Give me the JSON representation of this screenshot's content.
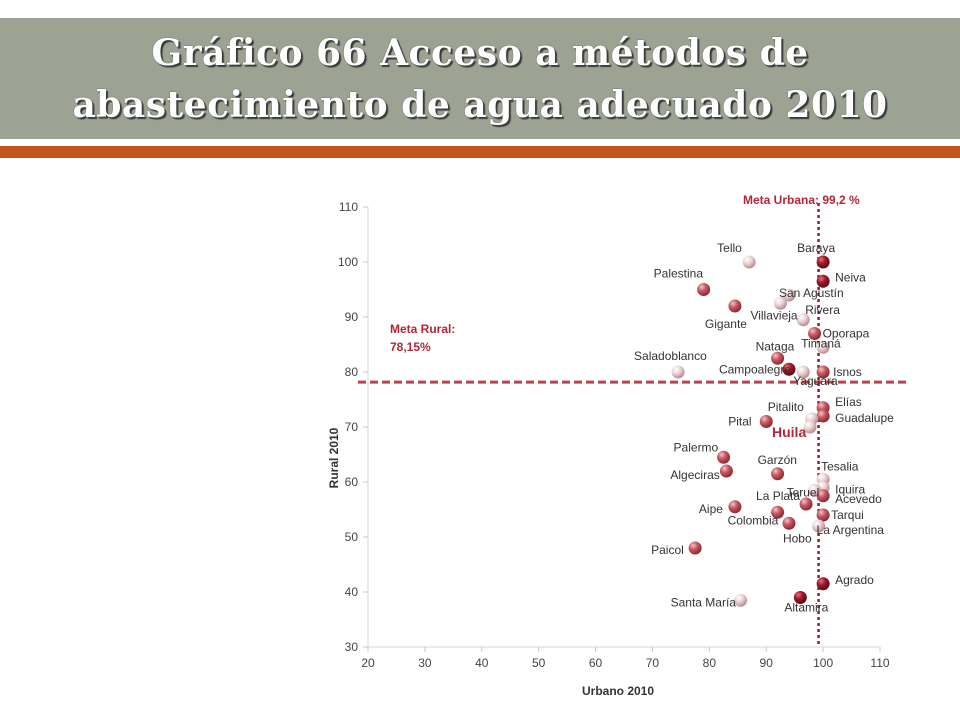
{
  "slide": {
    "title_line1": "Gráfico 66 Acceso  a métodos de",
    "title_line2": "abastecimiento de agua adecuado 2010"
  },
  "colors": {
    "title_band": "#9da393",
    "accent_bar": "#c4531c",
    "meta_line": "#b0283a",
    "point_dark": "#8e0f1c",
    "point_mid": "#c0535b",
    "point_light": "#e6c8c9"
  },
  "chart_data": {
    "type": "scatter",
    "xlabel": "Urbano 2010",
    "ylabel": "Rural 2010",
    "xlim": [
      20,
      110
    ],
    "ylim": [
      30,
      110
    ],
    "xticks": [
      20,
      30,
      40,
      50,
      60,
      70,
      80,
      90,
      100,
      110
    ],
    "yticks": [
      30,
      40,
      50,
      60,
      70,
      80,
      90,
      100,
      110
    ],
    "meta_urbana": {
      "label": "Meta Urbana: 99,2 %",
      "value": 99.2
    },
    "meta_rural": {
      "label_line1": "Meta Rural:",
      "label_line2": "78,15%",
      "value": 78.15
    },
    "highlight_label": "Huila",
    "points": [
      {
        "name": "Baraya",
        "x": 100,
        "y": 100,
        "shade": "dark"
      },
      {
        "name": "Tello",
        "x": 87,
        "y": 100,
        "shade": "light"
      },
      {
        "name": "Neiva",
        "x": 100,
        "y": 96.5,
        "shade": "dark"
      },
      {
        "name": "Palestina",
        "x": 79,
        "y": 95,
        "shade": "mid"
      },
      {
        "name": "San Agustín",
        "x": 94,
        "y": 94,
        "shade": "light"
      },
      {
        "name": "Gigante",
        "x": 84.5,
        "y": 92,
        "shade": "mid"
      },
      {
        "name": "Villavieja",
        "x": 92.5,
        "y": 92.5,
        "shade": "light"
      },
      {
        "name": "Rivera",
        "x": 96.5,
        "y": 89.5,
        "shade": "light"
      },
      {
        "name": "Oporapa",
        "x": 98.5,
        "y": 87,
        "shade": "mid"
      },
      {
        "name": "Nataga",
        "x": 92,
        "y": 82.5,
        "shade": "mid"
      },
      {
        "name": "Timaná",
        "x": 100,
        "y": 84.5,
        "shade": "light"
      },
      {
        "name": "Saladoblanco",
        "x": 74.5,
        "y": 80,
        "shade": "light"
      },
      {
        "name": "Campoalegre",
        "x": 94,
        "y": 80.5,
        "shade": "dark"
      },
      {
        "name": "Yaguara",
        "x": 96.5,
        "y": 80,
        "shade": "light"
      },
      {
        "name": "Isnos",
        "x": 100,
        "y": 80,
        "shade": "mid"
      },
      {
        "name": "Elías",
        "x": 100,
        "y": 73.5,
        "shade": "mid"
      },
      {
        "name": "Guadalupe",
        "x": 100,
        "y": 72,
        "shade": "mid"
      },
      {
        "name": "Pitalito",
        "x": 98,
        "y": 71.5,
        "shade": "light"
      },
      {
        "name": "Pital",
        "x": 90,
        "y": 71,
        "shade": "mid"
      },
      {
        "name": "Huila",
        "x": 97.7,
        "y": 70,
        "shade": "light"
      },
      {
        "name": "Palermo",
        "x": 82.5,
        "y": 64.5,
        "shade": "mid"
      },
      {
        "name": "Algeciras",
        "x": 83,
        "y": 62,
        "shade": "mid"
      },
      {
        "name": "Garzón",
        "x": 92,
        "y": 61.5,
        "shade": "mid"
      },
      {
        "name": "Tesalia",
        "x": 100,
        "y": 60.5,
        "shade": "light"
      },
      {
        "name": "Iquira",
        "x": 100,
        "y": 59,
        "shade": "light"
      },
      {
        "name": "Teruel",
        "x": 98.5,
        "y": 58.5,
        "shade": "light"
      },
      {
        "name": "Acevedo",
        "x": 100,
        "y": 57.5,
        "shade": "mid"
      },
      {
        "name": "La Plata",
        "x": 97,
        "y": 56,
        "shade": "mid"
      },
      {
        "name": "Aipe",
        "x": 84.5,
        "y": 55.5,
        "shade": "mid"
      },
      {
        "name": "Colombia",
        "x": 92,
        "y": 54.5,
        "shade": "mid"
      },
      {
        "name": "Tarqui",
        "x": 100,
        "y": 54,
        "shade": "mid"
      },
      {
        "name": "Hobo",
        "x": 94,
        "y": 52.5,
        "shade": "mid"
      },
      {
        "name": "La Argentina",
        "x": 99.2,
        "y": 52,
        "shade": "light"
      },
      {
        "name": "Paicol",
        "x": 77.5,
        "y": 48,
        "shade": "mid"
      },
      {
        "name": "Agrado",
        "x": 100,
        "y": 41.5,
        "shade": "dark"
      },
      {
        "name": "Santa María",
        "x": 85.5,
        "y": 38.5,
        "shade": "light"
      },
      {
        "name": "Altamira",
        "x": 96,
        "y": 39,
        "shade": "dark"
      }
    ]
  }
}
